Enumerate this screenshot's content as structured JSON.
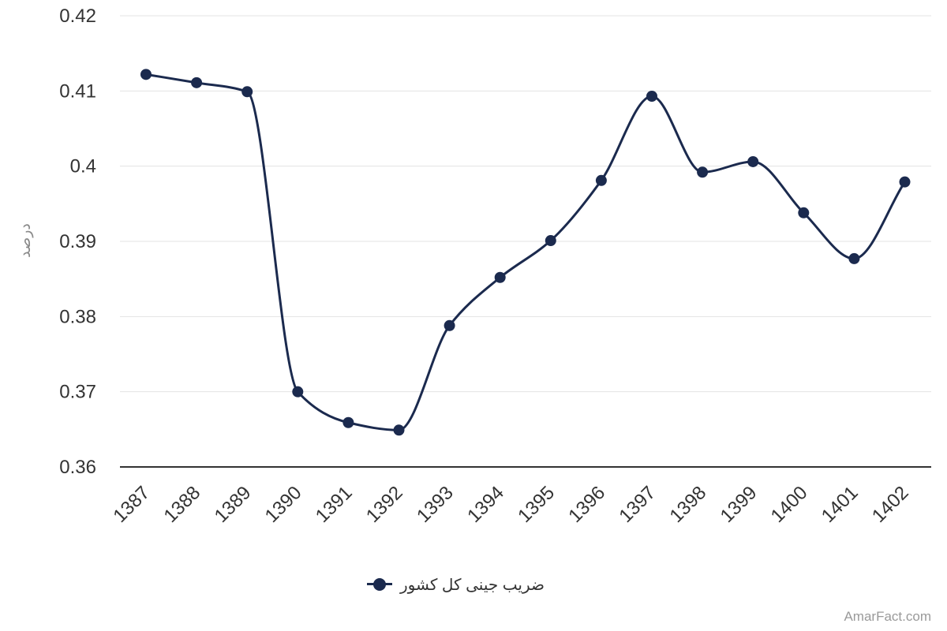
{
  "chart_data": {
    "type": "line",
    "title": "",
    "xlabel": "",
    "ylabel": "درصد",
    "x": [
      "1387",
      "1388",
      "1389",
      "1390",
      "1391",
      "1392",
      "1393",
      "1394",
      "1395",
      "1396",
      "1397",
      "1398",
      "1399",
      "1400",
      "1401",
      "1402"
    ],
    "series": [
      {
        "name": "ضریب جینی کل کشور",
        "values": [
          0.4122,
          0.4111,
          0.4099,
          0.37,
          0.3659,
          0.3649,
          0.3788,
          0.3852,
          0.3901,
          0.3981,
          0.4093,
          0.3992,
          0.4006,
          0.3938,
          0.3877,
          0.3979
        ]
      }
    ],
    "yticks": [
      "0.36",
      "0.37",
      "0.38",
      "0.39",
      "0.4",
      "0.41",
      "0.42"
    ],
    "ylim": [
      0.36,
      0.42
    ],
    "grid": true,
    "legend_position": "bottom",
    "color": "#1b2a4e"
  },
  "watermark": "AmarFact.com"
}
